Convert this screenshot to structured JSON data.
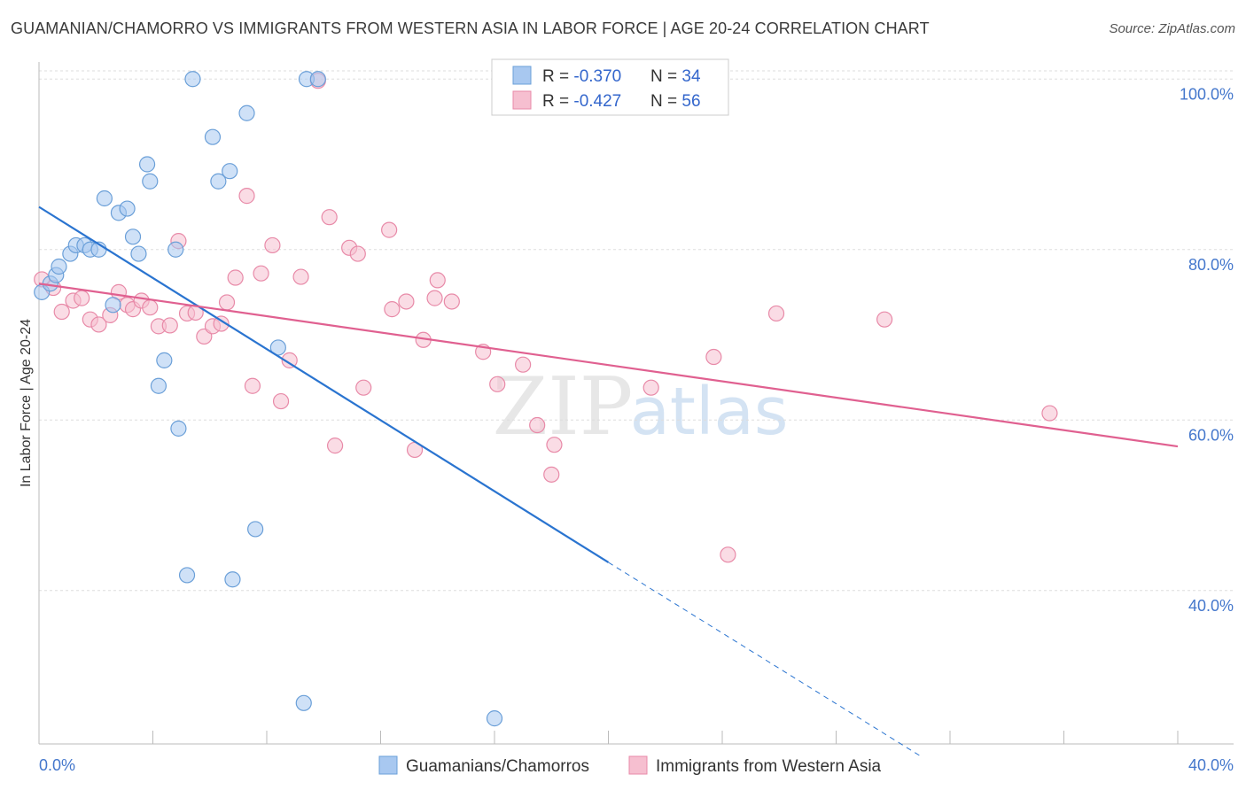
{
  "title": "GUAMANIAN/CHAMORRO VS IMMIGRANTS FROM WESTERN ASIA IN LABOR FORCE | AGE 20-24 CORRELATION CHART",
  "source": "Source: ZipAtlas.com",
  "watermark": {
    "zip": "ZIP",
    "atlas": "atlas"
  },
  "colors": {
    "blue_fill": "#a8c8f0",
    "blue_stroke": "#6a9fd8",
    "blue_line": "#2a74d0",
    "pink_fill": "#f6bfd0",
    "pink_stroke": "#e88aa8",
    "pink_line": "#e06090",
    "grid": "#dddddd",
    "tick_text": "#4477cc"
  },
  "chart_data": {
    "type": "scatter",
    "xlabel": "",
    "ylabel": "In Labor Force | Age 20-24",
    "xlim": [
      0,
      40
    ],
    "ylim": [
      22,
      102
    ],
    "x_tick_labels": [
      "0.0%",
      "40.0%"
    ],
    "y_ticks": [
      40,
      60,
      80,
      100
    ],
    "y_tick_labels": [
      "40.0%",
      "60.0%",
      "80.0%",
      "100.0%"
    ],
    "legend": {
      "placement": "top-center",
      "entries": [
        {
          "r_label": "R = ",
          "r_value": "-0.370",
          "n_label": "N = ",
          "n_value": "34"
        },
        {
          "r_label": "R = ",
          "r_value": "-0.427",
          "n_label": "N = ",
          "n_value": "56"
        }
      ]
    },
    "series": [
      {
        "name": "Guamanians/Chamorros",
        "color": "#a8c8f0",
        "points": [
          [
            0.1,
            75.0
          ],
          [
            0.4,
            76.0
          ],
          [
            0.6,
            77.0
          ],
          [
            0.7,
            78.0
          ],
          [
            1.1,
            79.5
          ],
          [
            1.3,
            80.5
          ],
          [
            1.6,
            80.5
          ],
          [
            1.8,
            80.0
          ],
          [
            2.1,
            80.0
          ],
          [
            2.3,
            86.0
          ],
          [
            2.6,
            73.5
          ],
          [
            2.8,
            84.3
          ],
          [
            3.1,
            84.8
          ],
          [
            3.3,
            81.5
          ],
          [
            3.5,
            79.5
          ],
          [
            3.8,
            90.0
          ],
          [
            3.9,
            88.0
          ],
          [
            4.2,
            64.0
          ],
          [
            4.4,
            67.0
          ],
          [
            4.8,
            80.0
          ],
          [
            4.9,
            59.0
          ],
          [
            5.2,
            41.8
          ],
          [
            5.4,
            100.0
          ],
          [
            6.1,
            93.2
          ],
          [
            6.3,
            88.0
          ],
          [
            6.7,
            89.2
          ],
          [
            6.8,
            41.3
          ],
          [
            7.3,
            96.0
          ],
          [
            7.6,
            47.2
          ],
          [
            8.4,
            68.5
          ],
          [
            9.3,
            26.8
          ],
          [
            9.4,
            100.0
          ],
          [
            9.8,
            100.0
          ],
          [
            16.0,
            25.0
          ]
        ],
        "trend": {
          "x": [
            0.0,
            20.0
          ],
          "y": [
            85.0,
            43.3
          ]
        },
        "trend_extension": {
          "x": [
            20.0,
            31.0
          ],
          "y": [
            43.3,
            20.5
          ]
        }
      },
      {
        "name": "Immigrants from Western Asia",
        "color": "#f6bfd0",
        "points": [
          [
            0.1,
            76.5
          ],
          [
            0.5,
            75.5
          ],
          [
            0.8,
            72.7
          ],
          [
            1.2,
            74.0
          ],
          [
            1.5,
            74.3
          ],
          [
            1.8,
            71.8
          ],
          [
            2.1,
            71.2
          ],
          [
            2.5,
            72.3
          ],
          [
            2.8,
            75.0
          ],
          [
            3.1,
            73.5
          ],
          [
            3.3,
            73.0
          ],
          [
            3.6,
            74.0
          ],
          [
            3.9,
            73.2
          ],
          [
            4.2,
            71.0
          ],
          [
            4.6,
            71.1
          ],
          [
            4.9,
            81.0
          ],
          [
            5.2,
            72.5
          ],
          [
            5.5,
            72.6
          ],
          [
            5.8,
            69.8
          ],
          [
            6.1,
            71.0
          ],
          [
            6.4,
            71.3
          ],
          [
            6.6,
            73.8
          ],
          [
            6.9,
            76.7
          ],
          [
            7.3,
            86.3
          ],
          [
            7.5,
            64.0
          ],
          [
            7.8,
            77.2
          ],
          [
            8.2,
            80.5
          ],
          [
            8.5,
            62.2
          ],
          [
            8.8,
            67.0
          ],
          [
            9.2,
            76.8
          ],
          [
            9.8,
            99.8
          ],
          [
            10.2,
            83.8
          ],
          [
            10.4,
            57.0
          ],
          [
            10.9,
            80.2
          ],
          [
            11.2,
            79.5
          ],
          [
            11.4,
            63.8
          ],
          [
            12.3,
            82.3
          ],
          [
            12.4,
            73.0
          ],
          [
            12.9,
            73.9
          ],
          [
            13.2,
            56.5
          ],
          [
            13.5,
            69.4
          ],
          [
            13.9,
            74.3
          ],
          [
            14.0,
            76.4
          ],
          [
            14.5,
            73.9
          ],
          [
            15.6,
            68.0
          ],
          [
            16.1,
            64.2
          ],
          [
            17.0,
            66.5
          ],
          [
            17.5,
            59.4
          ],
          [
            18.0,
            53.6
          ],
          [
            18.1,
            57.1
          ],
          [
            21.5,
            63.8
          ],
          [
            23.7,
            67.4
          ],
          [
            24.2,
            44.2
          ],
          [
            25.9,
            72.5
          ],
          [
            29.7,
            71.8
          ],
          [
            35.5,
            60.8
          ]
        ],
        "trend": {
          "x": [
            0.0,
            40.0
          ],
          "y": [
            76.0,
            56.9
          ]
        }
      }
    ]
  }
}
